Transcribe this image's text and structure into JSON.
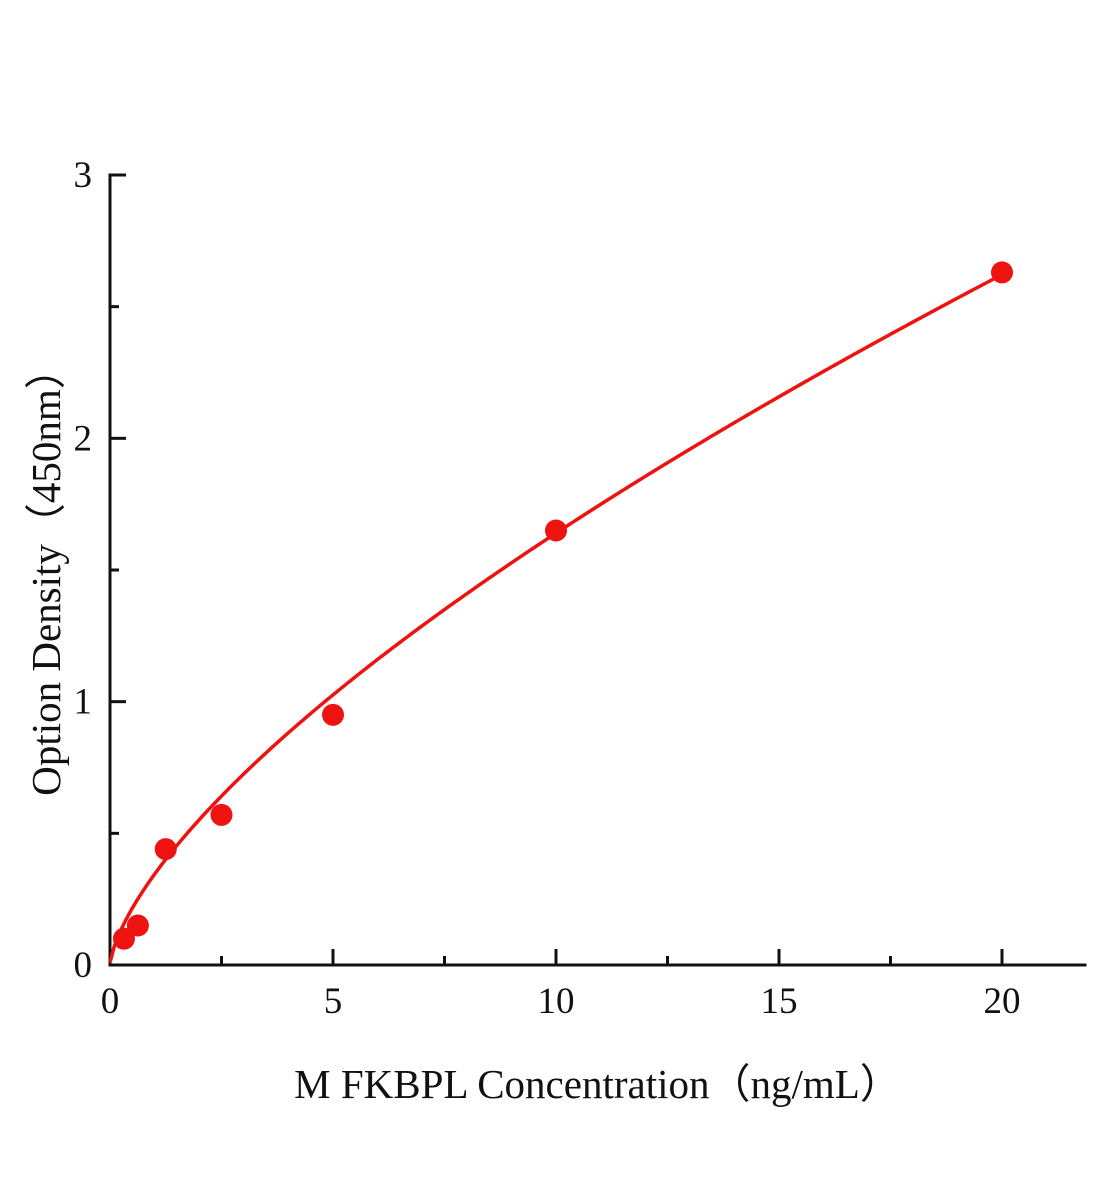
{
  "chart_data": {
    "type": "scatter",
    "title": "",
    "xlabel": "M FKBPL Concentration（ng/mL）",
    "ylabel": "Option Density（450nm）",
    "x": [
      0.313,
      0.625,
      1.25,
      2.5,
      5,
      10,
      20
    ],
    "y": [
      0.1,
      0.15,
      0.44,
      0.57,
      0.95,
      1.65,
      2.63
    ],
    "xlim": [
      0,
      21.8
    ],
    "ylim": [
      0,
      3
    ],
    "x_ticks": [
      0,
      5,
      10,
      15,
      20
    ],
    "y_ticks": [
      0,
      1,
      2,
      3
    ],
    "x_minor_ticks": [
      2.5,
      7.5,
      12.5,
      17.5
    ],
    "y_minor_ticks": [
      0.5,
      1.5,
      2.5
    ],
    "fit_curve": {
      "model": "power",
      "a": 0.345,
      "b": 0.677,
      "x_start": 0.01,
      "x_end": 20
    },
    "grid": false,
    "legend": "none",
    "accent_color": "#ee1211",
    "axis_color": "#111111",
    "marker_radius": 11
  }
}
